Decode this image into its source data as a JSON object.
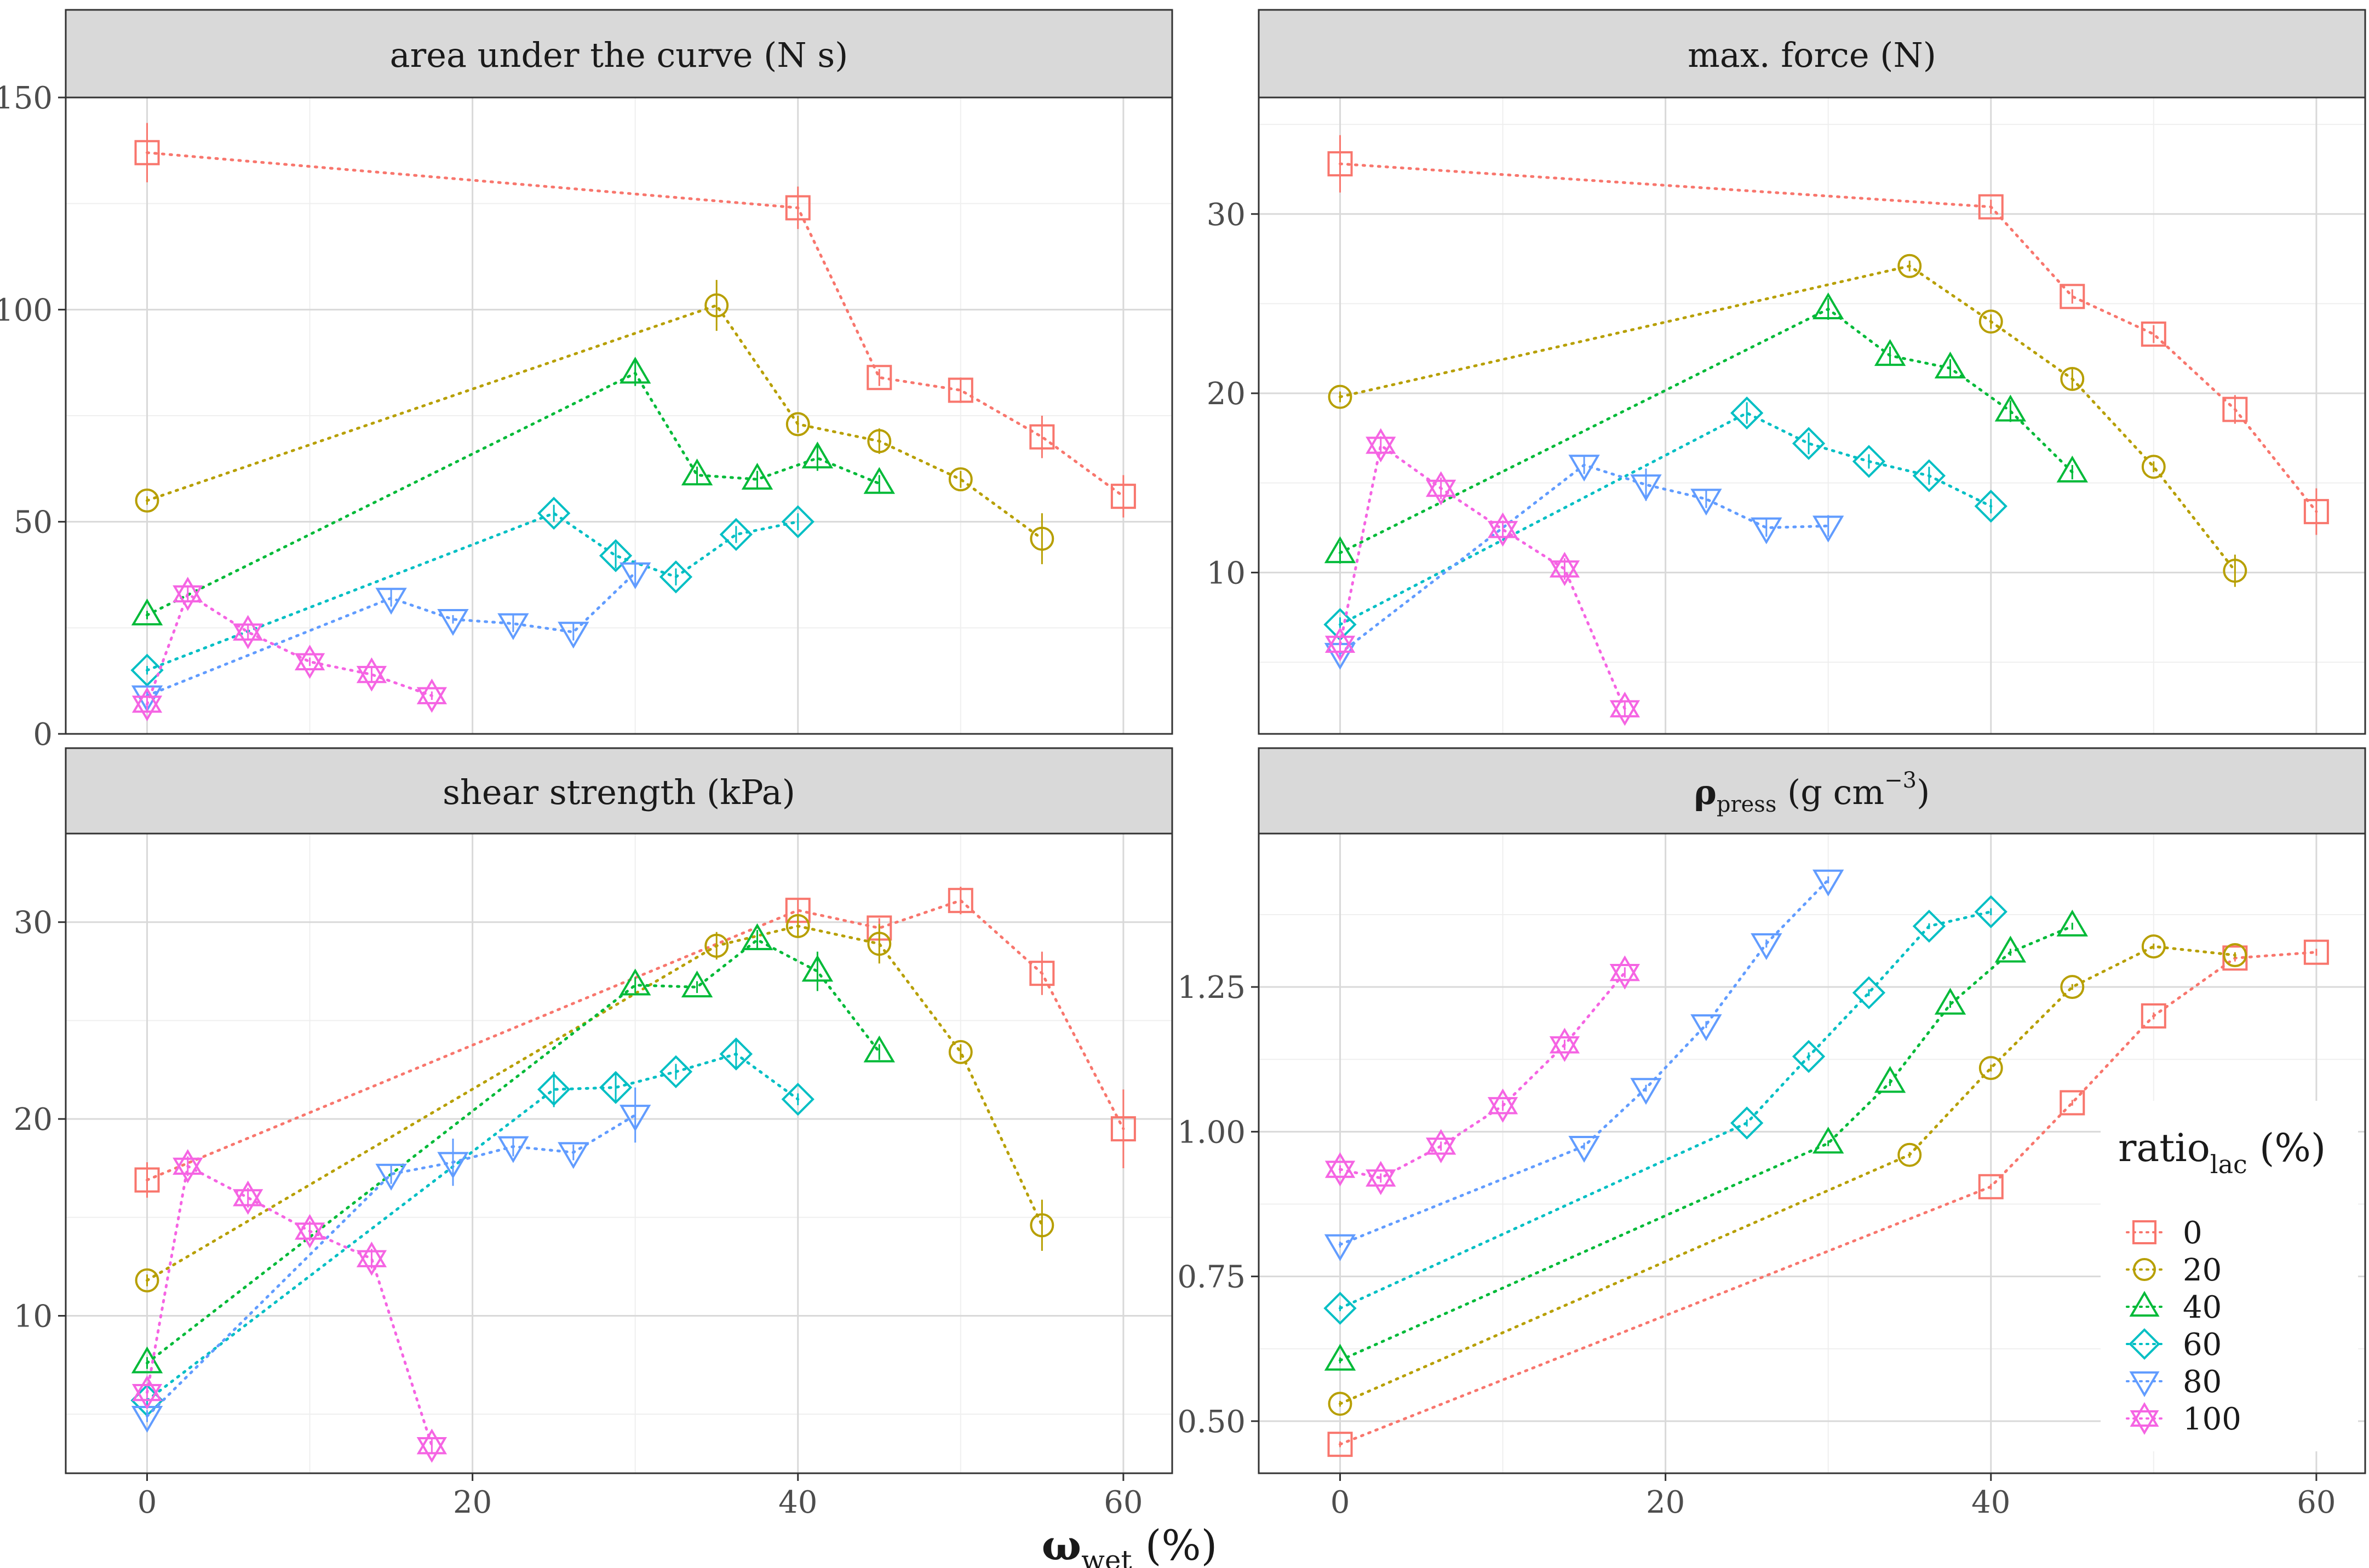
{
  "figure": {
    "xlabel_main": "ω",
    "xlabel_sub": "wet",
    "xlabel_unit": " (%)"
  },
  "colors": {
    "0": "#F8766D",
    "20": "#B79F00",
    "40": "#00BA38",
    "60": "#00BFC4",
    "80": "#619CFF",
    "100": "#F564E3",
    "strip": "#D9D9D9",
    "grid_major": "#D9D9D9",
    "grid_minor": "#EFEFEF"
  },
  "legend": {
    "title_main": "ratio",
    "title_sub": "lac",
    "title_unit": " (%)",
    "entries": [
      {
        "label": "0",
        "shape": "square"
      },
      {
        "label": "20",
        "shape": "circle"
      },
      {
        "label": "40",
        "shape": "triangle-up"
      },
      {
        "label": "60",
        "shape": "diamond"
      },
      {
        "label": "80",
        "shape": "triangle-down"
      },
      {
        "label": "100",
        "shape": "hexagram"
      }
    ]
  },
  "chart_data": [
    {
      "type": "line",
      "title": "area under the curve (N s)",
      "xlim": [
        -5,
        63
      ],
      "ylim": [
        0,
        150
      ],
      "yticks": [
        0,
        50,
        100,
        150
      ],
      "xticks": [
        0,
        20,
        40,
        60
      ],
      "series": [
        {
          "name": "0",
          "x": [
            0,
            40,
            45,
            50,
            55,
            60
          ],
          "y": [
            137,
            124,
            84,
            81,
            70,
            56
          ],
          "err": [
            7,
            5,
            2,
            3,
            5,
            5
          ]
        },
        {
          "name": "20",
          "x": [
            0,
            35,
            40,
            45,
            50,
            55
          ],
          "y": [
            55,
            101,
            73,
            69,
            60,
            46
          ],
          "err": [
            1,
            6,
            2,
            3,
            2,
            6
          ]
        },
        {
          "name": "40",
          "x": [
            0,
            30,
            33.8,
            37.5,
            41.2,
            45
          ],
          "y": [
            28,
            85,
            61,
            60,
            65,
            59
          ],
          "err": [
            1,
            3,
            2,
            2,
            3,
            2
          ]
        },
        {
          "name": "60",
          "x": [
            0,
            25,
            28.8,
            32.5,
            36.2,
            40
          ],
          "y": [
            15,
            52,
            42,
            37,
            47,
            50
          ],
          "err": [
            1,
            2,
            3,
            2,
            2,
            2
          ]
        },
        {
          "name": "80",
          "x": [
            0,
            15,
            18.8,
            22.5,
            26.2,
            30
          ],
          "y": [
            9,
            32,
            27,
            26,
            24,
            38
          ],
          "err": [
            1,
            2,
            1,
            2,
            2,
            3
          ]
        },
        {
          "name": "100",
          "x": [
            0,
            2.5,
            6.2,
            10,
            13.8,
            17.5
          ],
          "y": [
            7,
            33,
            24,
            17,
            14,
            9
          ],
          "err": [
            2,
            2,
            2,
            1,
            2,
            1
          ]
        }
      ]
    },
    {
      "type": "line",
      "title": "max. force (N)",
      "xlim": [
        -5,
        63
      ],
      "ylim": [
        1,
        36.5
      ],
      "yticks": [
        10,
        20,
        30
      ],
      "xticks": [
        0,
        20,
        40,
        60
      ],
      "series": [
        {
          "name": "0",
          "x": [
            0,
            40,
            45,
            50,
            55,
            60
          ],
          "y": [
            32.8,
            30.4,
            25.4,
            23.3,
            19.1,
            13.4
          ],
          "err": [
            1.6,
            0.4,
            0.4,
            0.5,
            0.8,
            1.3
          ]
        },
        {
          "name": "20",
          "x": [
            0,
            35,
            40,
            45,
            50,
            55
          ],
          "y": [
            19.8,
            27.1,
            24.0,
            20.8,
            15.9,
            10.1
          ],
          "err": [
            0.3,
            0.3,
            0.4,
            0.6,
            0.3,
            0.9
          ]
        },
        {
          "name": "40",
          "x": [
            0,
            30,
            33.8,
            37.5,
            41.2,
            45
          ],
          "y": [
            11.1,
            24.7,
            22.1,
            21.4,
            19.0,
            15.6
          ],
          "err": [
            0.6,
            0.6,
            0.5,
            0.5,
            0.6,
            0.4
          ]
        },
        {
          "name": "60",
          "x": [
            0,
            25,
            28.8,
            32.5,
            36.2,
            40
          ],
          "y": [
            7.1,
            18.9,
            17.2,
            16.2,
            15.4,
            13.7
          ],
          "err": [
            0.4,
            0.6,
            0.6,
            0.4,
            0.5,
            0.4
          ]
        },
        {
          "name": "80",
          "x": [
            0,
            15,
            18.8,
            22.5,
            26.2,
            30
          ],
          "y": [
            5.5,
            16.0,
            14.9,
            14.1,
            12.5,
            12.6
          ],
          "err": [
            0.3,
            0.5,
            0.9,
            0.5,
            0.5,
            0.6
          ]
        },
        {
          "name": "100",
          "x": [
            0,
            2.5,
            6.2,
            10,
            13.8,
            17.5
          ],
          "y": [
            6.0,
            17.1,
            14.7,
            12.4,
            10.2,
            2.4
          ],
          "err": [
            0.4,
            0.5,
            0.6,
            0.5,
            0.6,
            0.4
          ]
        }
      ]
    },
    {
      "type": "line",
      "title": "shear strength (kPa)",
      "xlim": [
        -5,
        63
      ],
      "ylim": [
        2,
        34.5
      ],
      "yticks": [
        10,
        20,
        30
      ],
      "xticks": [
        0,
        20,
        40,
        60
      ],
      "series": [
        {
          "name": "0",
          "x": [
            0,
            40,
            45,
            50,
            55,
            60
          ],
          "y": [
            16.9,
            30.6,
            29.7,
            31.1,
            27.4,
            19.5
          ],
          "err": [
            0.9,
            0.6,
            0.5,
            0.7,
            1.1,
            2.0
          ]
        },
        {
          "name": "20",
          "x": [
            0,
            35,
            40,
            45,
            50,
            55
          ],
          "y": [
            11.8,
            28.8,
            29.8,
            28.9,
            23.4,
            14.6
          ],
          "err": [
            0.3,
            0.7,
            0.6,
            1.0,
            0.4,
            1.3
          ]
        },
        {
          "name": "40",
          "x": [
            0,
            30,
            33.8,
            37.5,
            41.2,
            45
          ],
          "y": [
            7.6,
            26.8,
            26.7,
            29.1,
            27.5,
            23.4
          ],
          "err": [
            0.3,
            0.4,
            0.3,
            0.5,
            1.0,
            0.4
          ]
        },
        {
          "name": "60",
          "x": [
            0,
            25,
            28.8,
            32.5,
            36.2,
            40
          ],
          "y": [
            5.7,
            21.5,
            21.6,
            22.4,
            23.3,
            21.0
          ],
          "err": [
            0.3,
            0.9,
            0.8,
            0.4,
            0.7,
            0.3
          ]
        },
        {
          "name": "80",
          "x": [
            0,
            15,
            18.8,
            22.5,
            26.2,
            30
          ],
          "y": [
            4.9,
            17.2,
            17.8,
            18.6,
            18.3,
            20.2
          ],
          "err": [
            0.3,
            0.5,
            1.2,
            0.5,
            0.4,
            1.4
          ]
        },
        {
          "name": "100",
          "x": [
            0,
            2.5,
            6.2,
            10,
            13.8,
            17.5
          ],
          "y": [
            6.1,
            17.6,
            16.0,
            14.3,
            12.9,
            3.4
          ],
          "err": [
            0.3,
            0.5,
            0.5,
            0.5,
            0.5,
            0.4
          ]
        }
      ]
    },
    {
      "type": "line",
      "title_main": "ρ",
      "title_sub": "press",
      "title_unit_a": " (g cm",
      "title_sup": "−3",
      "title_unit_b": ")",
      "xlim": [
        -5,
        63
      ],
      "ylim": [
        0.41,
        1.515
      ],
      "yticks": [
        0.5,
        0.75,
        1.0,
        1.25
      ],
      "ytick_labels": [
        "0.50",
        "0.75",
        "1.00",
        "1.25"
      ],
      "xticks": [
        0,
        20,
        40,
        60
      ],
      "series": [
        {
          "name": "0",
          "x": [
            0,
            40,
            45,
            50,
            55,
            60
          ],
          "y": [
            0.46,
            0.905,
            1.05,
            1.2,
            1.3,
            1.31
          ],
          "err": [
            0.005,
            0.005,
            0.005,
            0.006,
            0.006,
            0.006
          ]
        },
        {
          "name": "20",
          "x": [
            0,
            35,
            40,
            45,
            50,
            55
          ],
          "y": [
            0.53,
            0.96,
            1.11,
            1.25,
            1.32,
            1.305
          ],
          "err": [
            0.005,
            0.005,
            0.006,
            0.005,
            0.005,
            0.005
          ]
        },
        {
          "name": "40",
          "x": [
            0,
            30,
            33.8,
            37.5,
            41.2,
            45
          ],
          "y": [
            0.605,
            0.98,
            1.085,
            1.22,
            1.31,
            1.355
          ],
          "err": [
            0.005,
            0.005,
            0.006,
            0.006,
            0.006,
            0.006
          ]
        },
        {
          "name": "60",
          "x": [
            0,
            25,
            28.8,
            32.5,
            36.2,
            40
          ],
          "y": [
            0.695,
            1.015,
            1.13,
            1.24,
            1.355,
            1.38
          ],
          "err": [
            0.005,
            0.006,
            0.007,
            0.006,
            0.005,
            0.006
          ]
        },
        {
          "name": "80",
          "x": [
            0,
            15,
            18.8,
            22.5,
            26.2,
            30
          ],
          "y": [
            0.805,
            0.975,
            1.075,
            1.185,
            1.325,
            1.435
          ],
          "err": [
            0.005,
            0.006,
            0.006,
            0.006,
            0.007,
            0.006
          ]
        },
        {
          "name": "100",
          "x": [
            0,
            2.5,
            6.2,
            10,
            13.8,
            17.5
          ],
          "y": [
            0.935,
            0.92,
            0.975,
            1.045,
            1.15,
            1.275
          ],
          "err": [
            0.007,
            0.008,
            0.008,
            0.009,
            0.009,
            0.009
          ]
        }
      ]
    }
  ]
}
